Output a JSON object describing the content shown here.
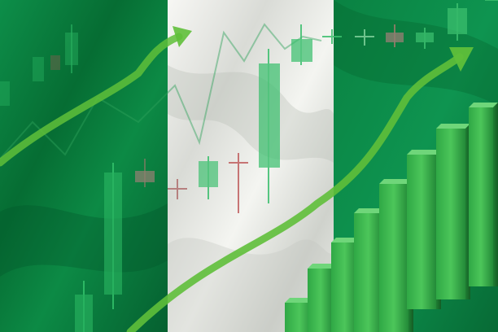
{
  "image": {
    "subject": "stock-photo",
    "colors": {
      "flag_green": "#0b8a45",
      "flag_green_dark": "#05602c",
      "flag_white": "#f1f2ee",
      "arrow_green": "#5fbf3a",
      "bar_green": "#3bbb4c",
      "bar_dark": "#1e7d33",
      "candle_up": "#33c26b",
      "candle_down": "#c06060"
    }
  }
}
